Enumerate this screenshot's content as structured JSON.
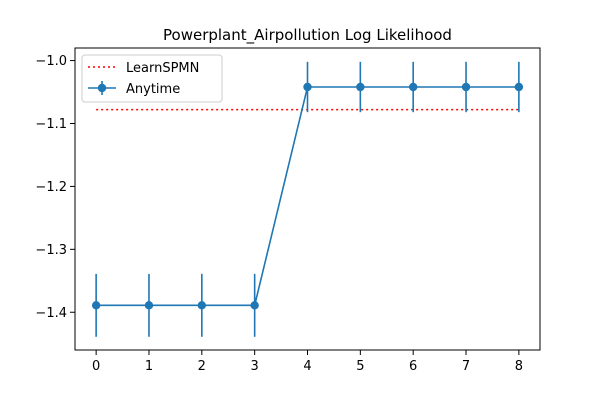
{
  "chart_data": {
    "type": "line",
    "title": "Powerplant_Airpollution Log Likelihood",
    "xlabel": "",
    "ylabel": "",
    "x_ticks": [
      0,
      1,
      2,
      3,
      4,
      5,
      6,
      7,
      8
    ],
    "x_tick_labels": [
      "0",
      "1",
      "2",
      "3",
      "4",
      "5",
      "6",
      "7",
      "8"
    ],
    "y_ticks": [
      -1.4,
      -1.3,
      -1.2,
      -1.1,
      -1.0
    ],
    "y_tick_labels": [
      "−1.4",
      "−1.3",
      "−1.2",
      "−1.1",
      "−1.0"
    ],
    "xlim": [
      -0.4,
      8.4
    ],
    "ylim": [
      -1.46,
      -0.98
    ],
    "grid": false,
    "legend_position": "upper-left",
    "series": [
      {
        "name": "LearnSPMN",
        "style": "dotted",
        "color": "#ff0000",
        "x": [
          0,
          8
        ],
        "y": [
          -1.078,
          -1.078
        ]
      },
      {
        "name": "Anytime",
        "style": "solid-with-markers-and-errorbars",
        "color": "#1f77b4",
        "x": [
          0,
          1,
          2,
          3,
          4,
          5,
          6,
          7,
          8
        ],
        "y": [
          -1.389,
          -1.389,
          -1.389,
          -1.389,
          -1.042,
          -1.042,
          -1.042,
          -1.042,
          -1.042
        ],
        "yerr": [
          0.05,
          0.05,
          0.05,
          0.05,
          0.04,
          0.04,
          0.04,
          0.04,
          0.04
        ]
      }
    ]
  }
}
